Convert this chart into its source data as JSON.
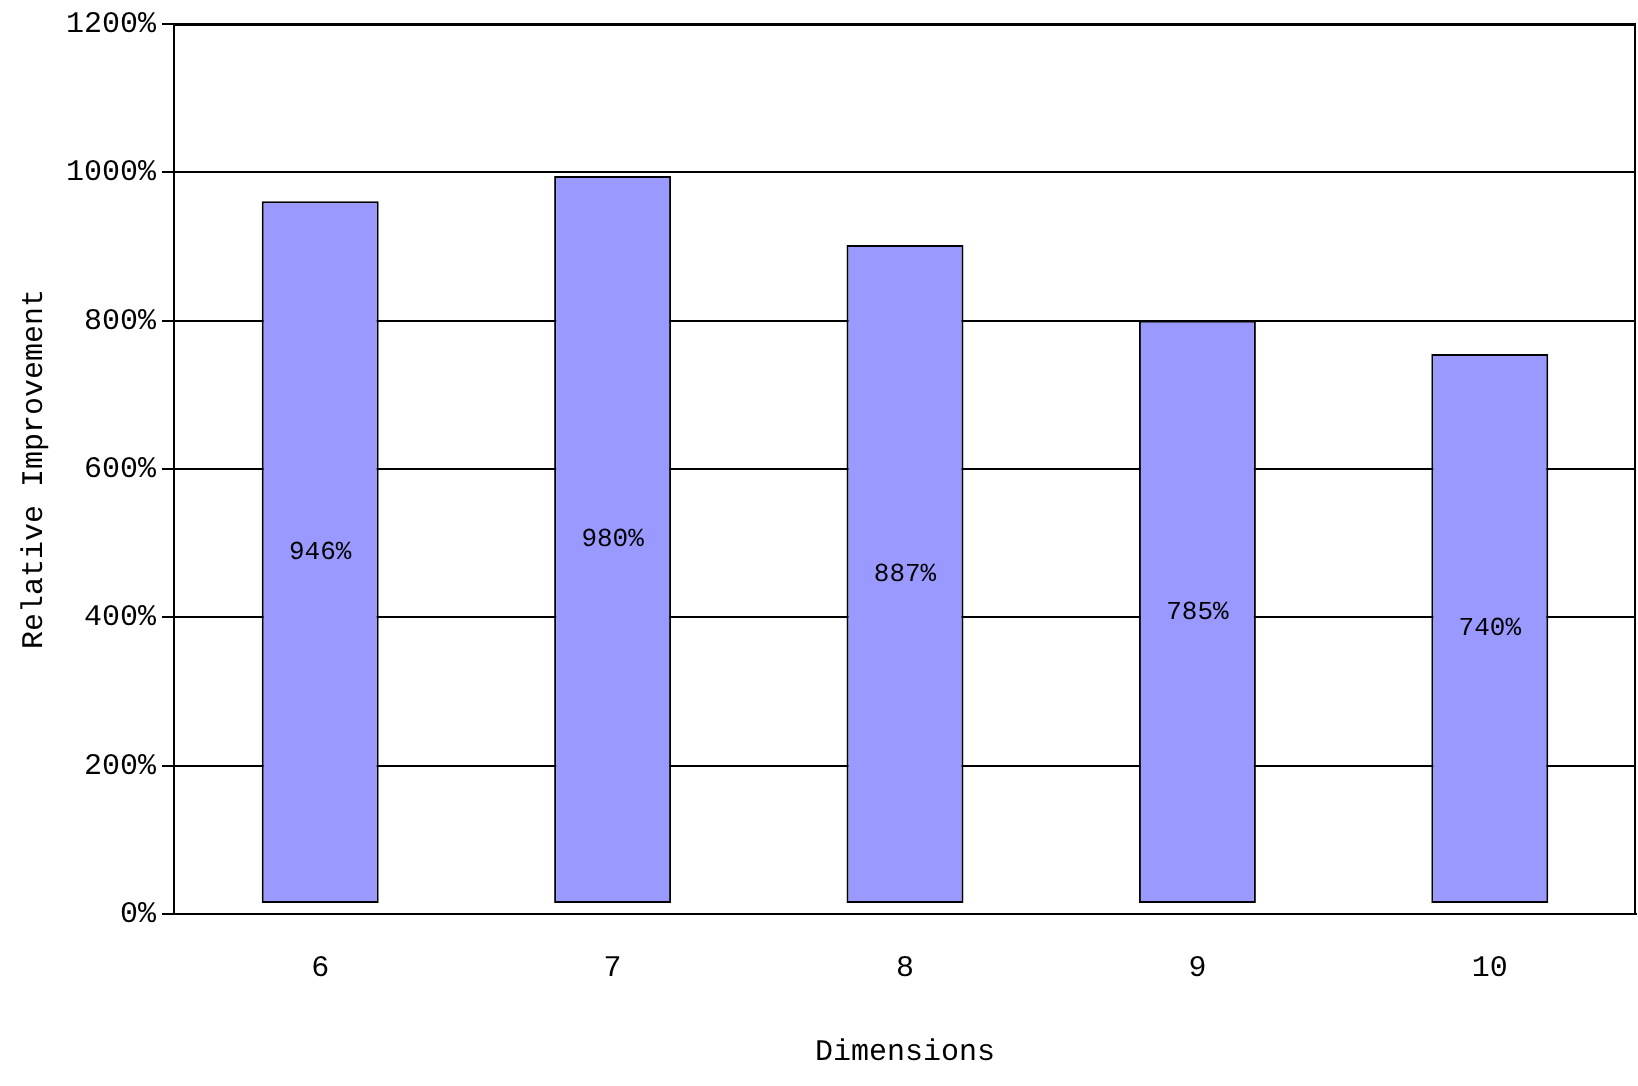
{
  "chart_data": {
    "type": "bar",
    "xlabel": "Dimensions",
    "ylabel": "Relative Improvement",
    "categories": [
      "6",
      "7",
      "8",
      "9",
      "10"
    ],
    "values": [
      946,
      980,
      887,
      785,
      740
    ],
    "base": [
      15,
      15,
      15,
      15,
      15
    ],
    "color": "#9999ff",
    "value_labels": [
      "946%",
      "980%",
      "887%",
      "785%",
      "740%"
    ],
    "ylim": [
      0,
      1200
    ],
    "yticks": [
      {
        "value": 0,
        "label": "0%"
      },
      {
        "value": 200,
        "label": "200%"
      },
      {
        "value": 400,
        "label": "400%"
      },
      {
        "value": 600,
        "label": "600%"
      },
      {
        "value": 800,
        "label": "800%"
      },
      {
        "value": 1000,
        "label": "1000%"
      },
      {
        "value": 1200,
        "label": "1200%"
      }
    ],
    "grid": "y",
    "legend": false
  }
}
